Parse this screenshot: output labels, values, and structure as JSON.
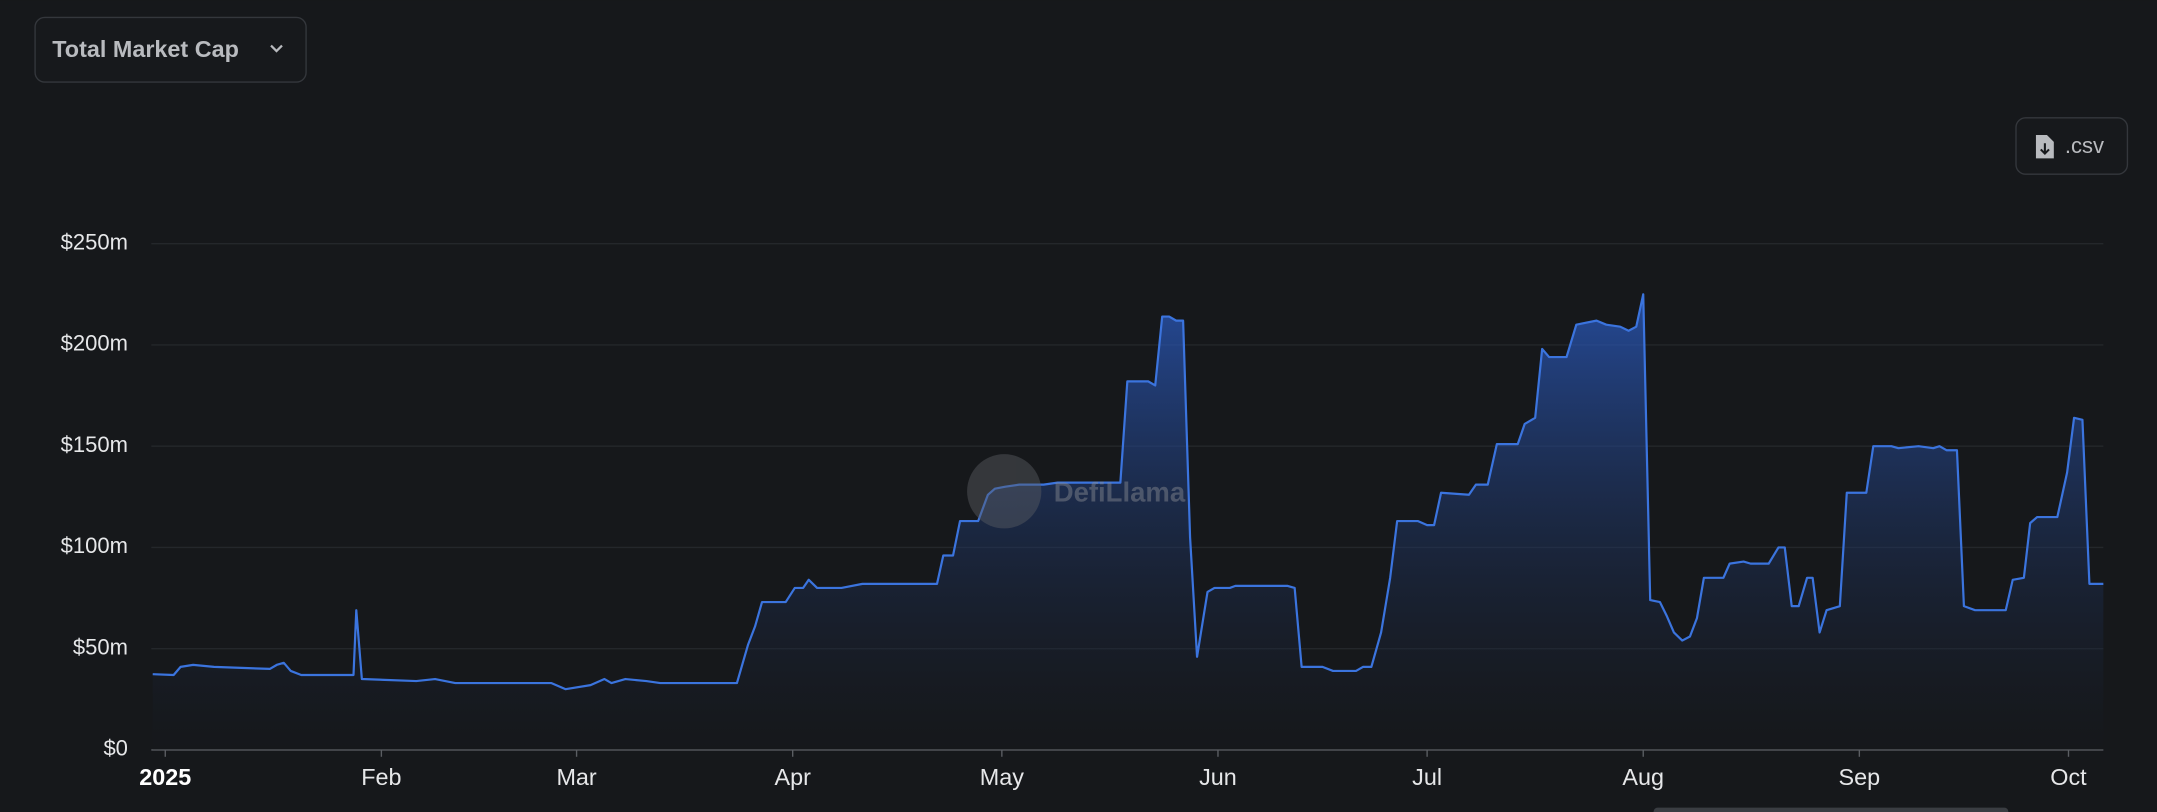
{
  "ui": {
    "dropdown": "Total Market Cap",
    "export_button": ".csv",
    "watermark": "DefiLlama"
  },
  "chart_data": {
    "type": "area",
    "color": "#3b74de",
    "grid": true,
    "x": [
      -1.8,
      1.2,
      2.2,
      4,
      7,
      15,
      16,
      17,
      18,
      19.5,
      27,
      27.4,
      28.2,
      36,
      38.7,
      41.6,
      55.4,
      57.4,
      61,
      63,
      64,
      66,
      69,
      71,
      79,
      80,
      82,
      83.6,
      84.6,
      85.6,
      87,
      89,
      90.3,
      91.5,
      92.3,
      93.5,
      97,
      100,
      110.7,
      111.6,
      113,
      114,
      116.6,
      118,
      119,
      120.5,
      122.5,
      126,
      128,
      137,
      138,
      141,
      142,
      143,
      144,
      145,
      146,
      147,
      148,
      149.5,
      150.5,
      152.7,
      153.5,
      161,
      162,
      163,
      166,
      167.5,
      170.8,
      171.8,
      173,
      174.4,
      175.7,
      176.7,
      179.7,
      181,
      182,
      183,
      187,
      188,
      189.7,
      191,
      194,
      195,
      196.5,
      197.5,
      198.5,
      201,
      202.4,
      203.8,
      205.3,
      206.7,
      208.7,
      209.9,
      211,
      212,
      213,
      214.4,
      215.4,
      216.4,
      217.6,
      218.7,
      219.7,
      220.7,
      223.5,
      224.4,
      226.4,
      227.4,
      230,
      231.4,
      232.3,
      233.3,
      234.3,
      235.5,
      236.3,
      237.3,
      238.3,
      240.2,
      241.2,
      244,
      245,
      247.6,
      248.6,
      251.5,
      253.6,
      254.5,
      255.5,
      257,
      258,
      259.6,
      264,
      265,
      266.6,
      267.5,
      268.5,
      271.4,
      272.8,
      273.8,
      275,
      276,
      278
    ],
    "values": [
      37.4,
      37,
      41,
      42,
      41,
      40,
      42,
      43,
      39,
      37,
      37,
      69,
      35,
      34,
      35,
      33,
      33,
      30,
      32,
      35,
      33,
      35,
      34,
      33,
      33,
      33,
      33,
      52,
      61,
      73,
      73,
      73,
      80,
      80,
      84,
      80,
      80,
      82,
      82,
      96,
      96,
      113,
      113,
      126,
      129,
      130,
      131,
      131,
      132,
      132,
      182,
      182,
      180,
      214,
      214,
      212,
      212,
      105,
      46,
      78,
      80,
      80,
      81,
      81,
      80,
      41,
      41,
      39,
      39,
      41,
      41,
      58,
      85,
      113,
      113,
      111,
      111,
      127,
      126,
      131,
      131,
      151,
      151,
      161,
      164,
      198,
      194,
      194,
      210,
      211,
      212,
      210,
      209,
      207,
      209,
      225,
      74,
      73,
      66,
      58,
      54,
      56,
      65,
      85,
      85,
      92,
      93,
      92,
      92,
      100,
      100,
      71,
      71,
      85,
      85,
      58,
      69,
      71,
      127,
      127,
      150,
      150,
      149,
      150,
      149,
      150,
      148,
      148,
      71,
      69,
      69,
      84,
      85,
      112,
      115,
      115,
      137,
      164,
      163,
      82,
      82
    ],
    "xlim": [
      -2,
      278
    ],
    "xticks": [
      {
        "value": 0,
        "label": "2025"
      },
      {
        "value": 31,
        "label": "Feb"
      },
      {
        "value": 59,
        "label": "Mar"
      },
      {
        "value": 90,
        "label": "Apr"
      },
      {
        "value": 120,
        "label": "May"
      },
      {
        "value": 151,
        "label": "Jun"
      },
      {
        "value": 181,
        "label": "Jul"
      },
      {
        "value": 212,
        "label": "Aug"
      },
      {
        "value": 243,
        "label": "Sep"
      },
      {
        "value": 273,
        "label": "Oct"
      }
    ],
    "ylim": [
      0,
      250
    ],
    "yticks": [
      {
        "value": 0,
        "label": "$0"
      },
      {
        "value": 50,
        "label": "$50m"
      },
      {
        "value": 100,
        "label": "$100m"
      },
      {
        "value": 150,
        "label": "$150m"
      },
      {
        "value": 200,
        "label": "$200m"
      },
      {
        "value": 250,
        "label": "$250m"
      }
    ]
  }
}
